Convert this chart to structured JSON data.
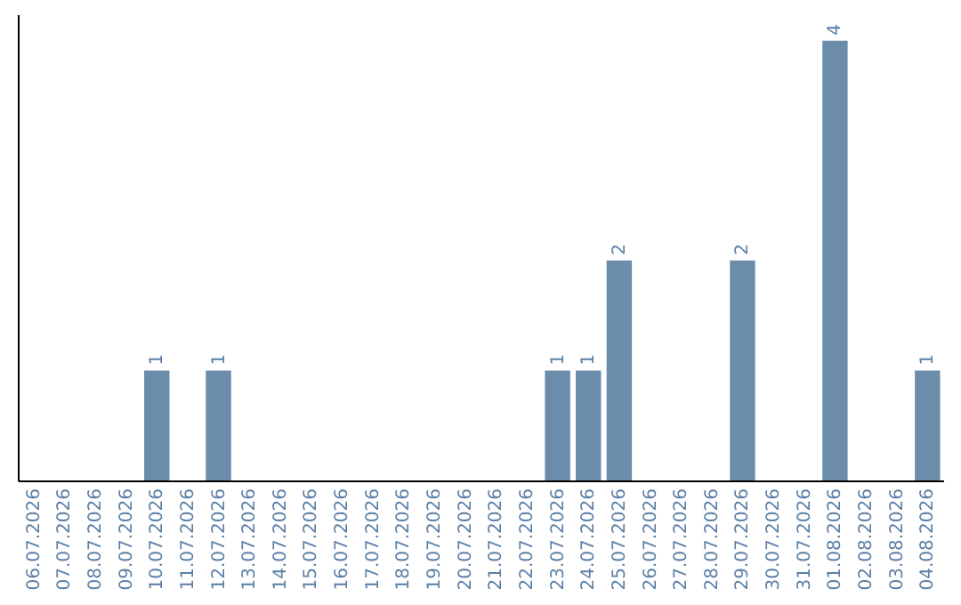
{
  "chart_data": {
    "type": "bar",
    "categories": [
      "06.07.2026",
      "07.07.2026",
      "08.07.2026",
      "09.07.2026",
      "10.07.2026",
      "11.07.2026",
      "12.07.2026",
      "13.07.2026",
      "14.07.2026",
      "15.07.2026",
      "16.07.2026",
      "17.07.2026",
      "18.07.2026",
      "19.07.2026",
      "20.07.2026",
      "21.07.2026",
      "22.07.2026",
      "23.07.2026",
      "24.07.2026",
      "25.07.2026",
      "26.07.2026",
      "27.07.2026",
      "28.07.2026",
      "29.07.2026",
      "30.07.2026",
      "31.07.2026",
      "01.08.2026",
      "02.08.2026",
      "03.08.2026",
      "04.08.2026"
    ],
    "values": [
      0,
      0,
      0,
      0,
      1,
      0,
      1,
      0,
      0,
      0,
      0,
      0,
      0,
      0,
      0,
      0,
      0,
      1,
      1,
      2,
      0,
      0,
      0,
      2,
      0,
      0,
      4,
      0,
      0,
      1
    ],
    "value_labels": [
      null,
      null,
      null,
      null,
      "1",
      null,
      "1",
      null,
      null,
      null,
      null,
      null,
      null,
      null,
      null,
      null,
      null,
      "1",
      "1",
      "2",
      null,
      null,
      null,
      "2",
      null,
      null,
      "4",
      null,
      null,
      "1"
    ],
    "color": "#6b8cab",
    "grid": false,
    "tick_labels": "x"
  }
}
